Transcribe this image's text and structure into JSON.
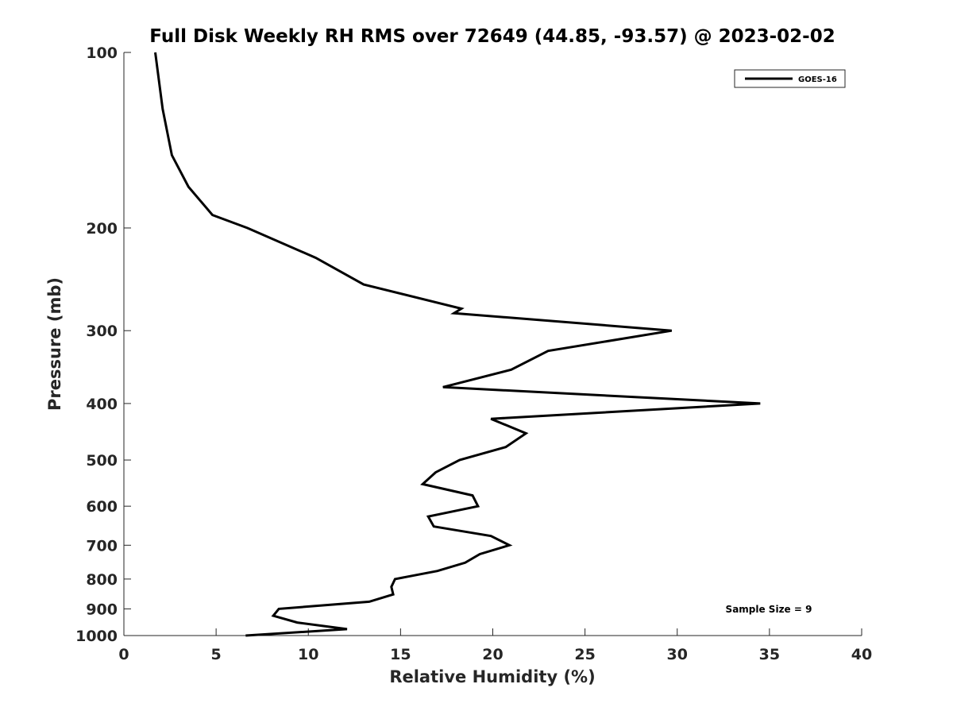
{
  "chart_data": {
    "type": "line",
    "title": "Full Disk Weekly RH RMS over 72649 (44.85, -93.57) @ 2023-02-02",
    "xlabel": "Relative Humidity (%)",
    "ylabel": "Pressure (mb)",
    "xlim": [
      0,
      40
    ],
    "ylim": [
      1000,
      100
    ],
    "y_scale": "log",
    "y_reversed": true,
    "grid": false,
    "legend_position": "top-right",
    "x_ticks": [
      0,
      5,
      10,
      15,
      20,
      25,
      30,
      35,
      40
    ],
    "y_ticks": [
      100,
      200,
      300,
      400,
      500,
      600,
      700,
      800,
      900,
      1000
    ],
    "x_tick_labels": [
      "0",
      "5",
      "10",
      "15",
      "20",
      "25",
      "30",
      "35",
      "40"
    ],
    "y_tick_labels": [
      "100",
      "200",
      "300",
      "400",
      "500",
      "600",
      "700",
      "800",
      "900",
      "1000"
    ],
    "series": [
      {
        "name": "GOES-16",
        "color": "#000000",
        "points": [
          {
            "x": 1.7,
            "y": 100
          },
          {
            "x": 2.1,
            "y": 125
          },
          {
            "x": 2.6,
            "y": 150
          },
          {
            "x": 3.5,
            "y": 170
          },
          {
            "x": 4.8,
            "y": 190
          },
          {
            "x": 6.7,
            "y": 200
          },
          {
            "x": 10.4,
            "y": 225
          },
          {
            "x": 13.0,
            "y": 250
          },
          {
            "x": 18.3,
            "y": 275
          },
          {
            "x": 17.9,
            "y": 280
          },
          {
            "x": 29.7,
            "y": 300
          },
          {
            "x": 23.0,
            "y": 325
          },
          {
            "x": 21.0,
            "y": 350
          },
          {
            "x": 17.3,
            "y": 375
          },
          {
            "x": 34.5,
            "y": 400
          },
          {
            "x": 19.9,
            "y": 425
          },
          {
            "x": 21.8,
            "y": 450
          },
          {
            "x": 20.7,
            "y": 475
          },
          {
            "x": 18.2,
            "y": 500
          },
          {
            "x": 16.9,
            "y": 525
          },
          {
            "x": 16.2,
            "y": 550
          },
          {
            "x": 18.9,
            "y": 575
          },
          {
            "x": 19.2,
            "y": 600
          },
          {
            "x": 16.5,
            "y": 625
          },
          {
            "x": 16.8,
            "y": 650
          },
          {
            "x": 19.9,
            "y": 675
          },
          {
            "x": 20.9,
            "y": 700
          },
          {
            "x": 19.3,
            "y": 725
          },
          {
            "x": 18.5,
            "y": 750
          },
          {
            "x": 17.0,
            "y": 775
          },
          {
            "x": 14.7,
            "y": 800
          },
          {
            "x": 14.5,
            "y": 825
          },
          {
            "x": 14.6,
            "y": 850
          },
          {
            "x": 13.3,
            "y": 875
          },
          {
            "x": 8.4,
            "y": 900
          },
          {
            "x": 8.1,
            "y": 925
          },
          {
            "x": 9.4,
            "y": 950
          },
          {
            "x": 12.1,
            "y": 975
          },
          {
            "x": 6.6,
            "y": 1000
          }
        ]
      }
    ],
    "annotations": [
      {
        "text": "Sample Size = 9",
        "x": 34.8,
        "y": 900
      }
    ]
  }
}
